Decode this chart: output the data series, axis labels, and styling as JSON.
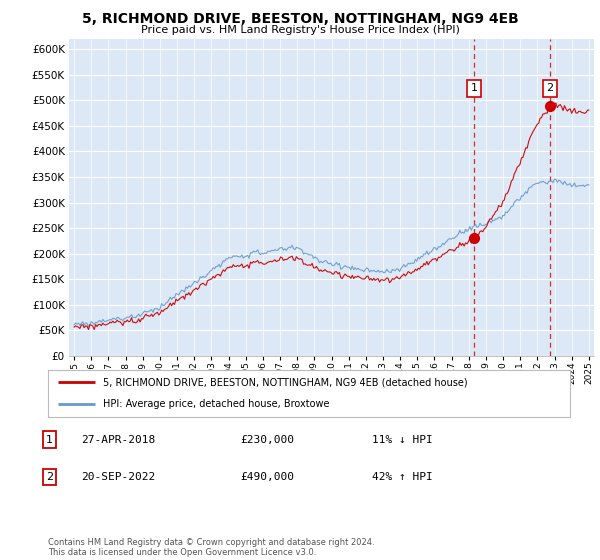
{
  "title": "5, RICHMOND DRIVE, BEESTON, NOTTINGHAM, NG9 4EB",
  "subtitle": "Price paid vs. HM Land Registry's House Price Index (HPI)",
  "background_color": "#ffffff",
  "plot_bg_color": "#dce8f5",
  "plot_bg_color_left": "#dce8f5",
  "grid_color": "#ffffff",
  "hpi_color": "#6699cc",
  "price_color": "#cc0000",
  "dashed_line_color": "#cc0000",
  "ylim": [
    0,
    620000
  ],
  "yticks": [
    0,
    50000,
    100000,
    150000,
    200000,
    250000,
    300000,
    350000,
    400000,
    450000,
    500000,
    550000,
    600000
  ],
  "legend_label_red": "5, RICHMOND DRIVE, BEESTON, NOTTINGHAM, NG9 4EB (detached house)",
  "legend_label_blue": "HPI: Average price, detached house, Broxtowe",
  "transaction1_label": "1",
  "transaction1_date": "27-APR-2018",
  "transaction1_price": "£230,000",
  "transaction1_hpi": "11% ↓ HPI",
  "transaction2_label": "2",
  "transaction2_date": "20-SEP-2022",
  "transaction2_price": "£490,000",
  "transaction2_hpi": "42% ↑ HPI",
  "footer": "Contains HM Land Registry data © Crown copyright and database right 2024.\nThis data is licensed under the Open Government Licence v3.0.",
  "vline1_x": 2018.32,
  "vline2_x": 2022.72,
  "sale1_x": 2018.32,
  "sale1_y": 230000,
  "sale2_x": 2022.72,
  "sale2_y": 490000,
  "xmin": 1995,
  "xmax": 2025
}
